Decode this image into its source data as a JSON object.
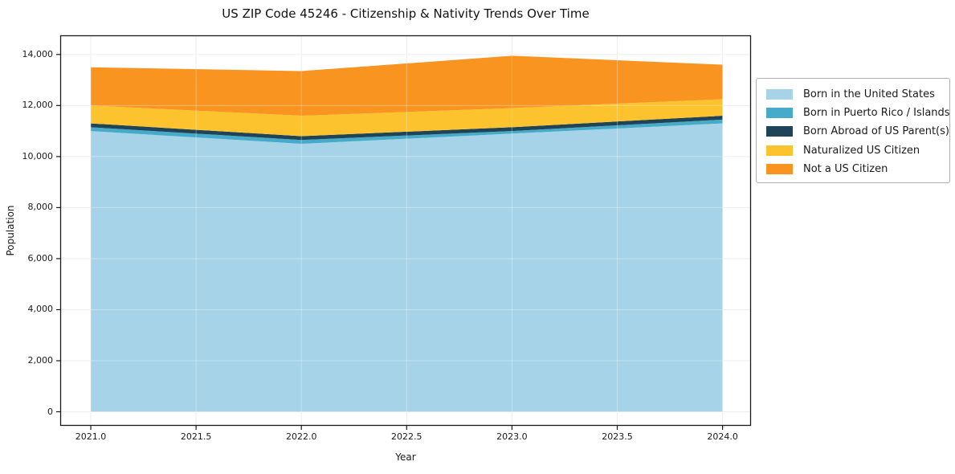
{
  "title": "US ZIP Code 45246 - Citizenship & Nativity Trends Over Time",
  "chart_data": {
    "type": "area",
    "stacked": true,
    "title": "US ZIP Code 45246 - Citizenship & Nativity Trends Over Time",
    "xlabel": "Year",
    "ylabel": "Population",
    "x": [
      2021,
      2022,
      2023,
      2024
    ],
    "series": [
      {
        "name": "Born in the United States",
        "color": "#a6d3e8",
        "values": [
          11000,
          10500,
          10900,
          11300
        ]
      },
      {
        "name": "Born in Puerto Rico / Islands",
        "color": "#45abc9",
        "values": [
          150,
          150,
          100,
          150
        ]
      },
      {
        "name": "Born Abroad of US Parent(s)",
        "color": "#1f4457",
        "values": [
          150,
          150,
          150,
          150
        ]
      },
      {
        "name": "Naturalized US Citizen",
        "color": "#fdc32f",
        "values": [
          700,
          800,
          750,
          650
        ]
      },
      {
        "name": "Not a US Citizen",
        "color": "#f8941f",
        "values": [
          1500,
          1750,
          2050,
          1350
        ]
      }
    ],
    "stacked_totals": [
      13500,
      13350,
      13950,
      13600
    ],
    "x_tick_values": [
      2021.0,
      2021.5,
      2022.0,
      2022.5,
      2023.0,
      2023.5,
      2024.0
    ],
    "x_tick_labels": [
      "2021.0",
      "2021.5",
      "2022.0",
      "2022.5",
      "2023.0",
      "2023.5",
      "2024.0"
    ],
    "y_tick_values": [
      0,
      2000,
      4000,
      6000,
      8000,
      10000,
      12000,
      14000
    ],
    "y_tick_labels": [
      "0",
      "2,000",
      "4,000",
      "6,000",
      "8,000",
      "10,000",
      "12,000",
      "14,000"
    ],
    "xlim": [
      2020.855,
      2024.135
    ],
    "ylim": [
      -550,
      14750
    ],
    "grid": true,
    "legend_position": "outside-right",
    "colors": {
      "grid": "#e6e6e6",
      "spine": "#1a1a1a",
      "background": "#ffffff",
      "legend_border": "#b0b0b0"
    }
  }
}
